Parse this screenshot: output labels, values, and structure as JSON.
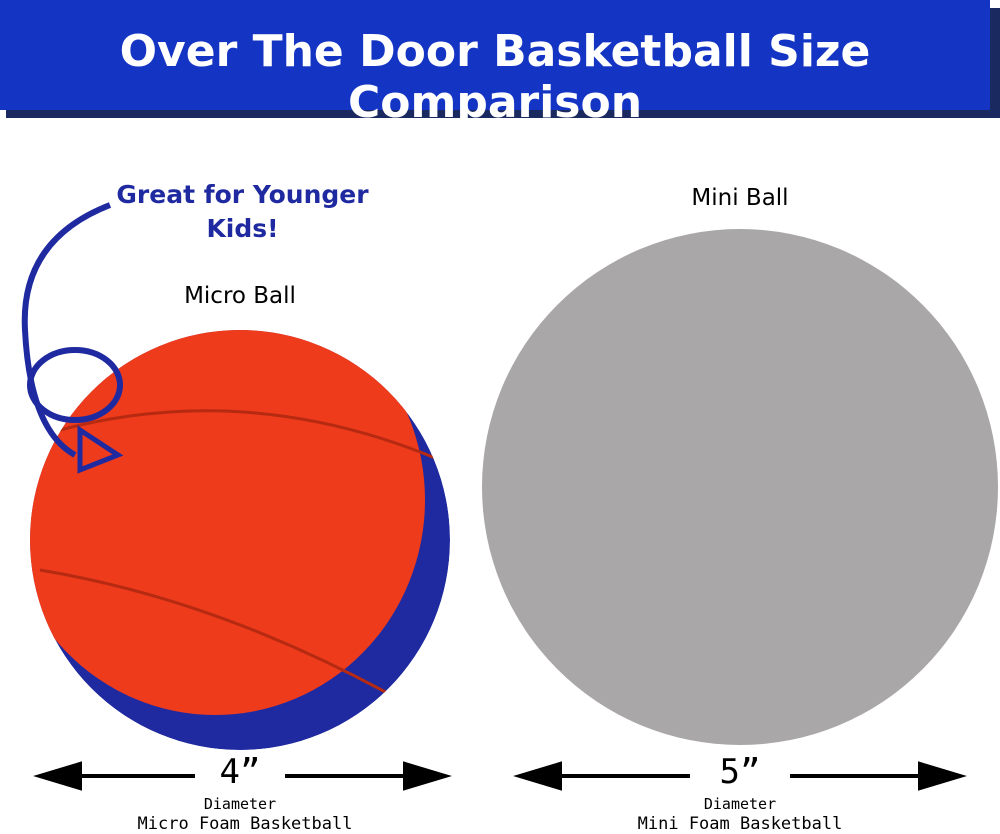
{
  "header": {
    "title": "Over The Door Basketball Size Comparison"
  },
  "callout": "Great for Younger Kids!",
  "balls": [
    {
      "label": "Micro Ball",
      "size": "4”",
      "caption": "Diameter",
      "name": "Micro Foam Basketball"
    },
    {
      "label": "Mini Ball",
      "size": "5”",
      "caption": "Diameter",
      "name": "Mini Foam Basketball"
    }
  ]
}
